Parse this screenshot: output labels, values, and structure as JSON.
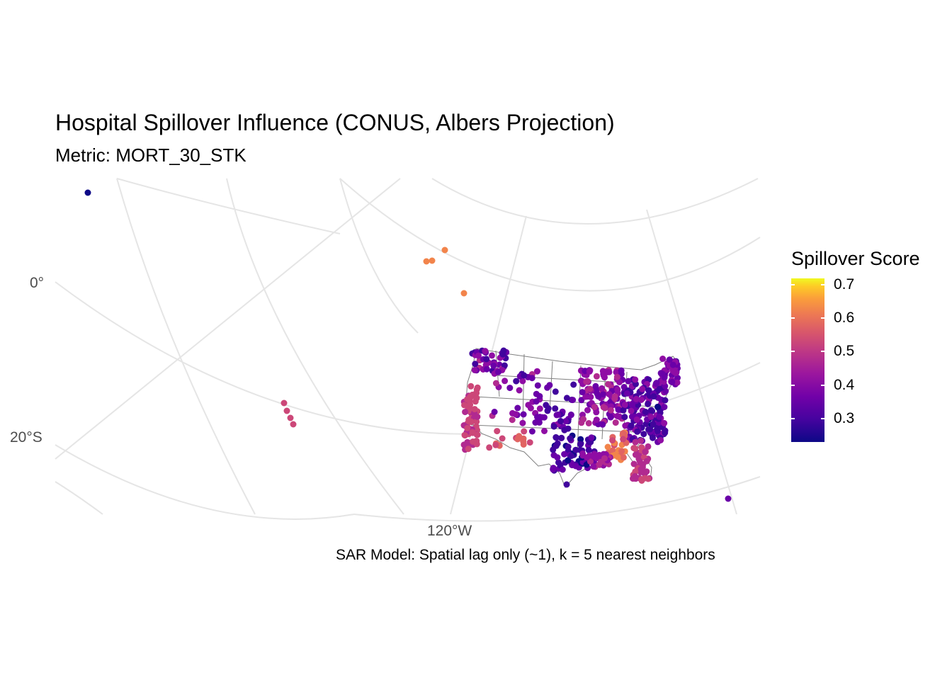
{
  "title": "Hospital Spillover Influence (CONUS, Albers Projection)",
  "subtitle": "Metric: MORT_30_STK",
  "caption": "SAR Model: Spatial lag only (~1), k = 5 nearest neighbors",
  "axes": {
    "lat_labels": [
      "0°",
      "20°S"
    ],
    "lon_labels": [
      "120°W"
    ]
  },
  "legend": {
    "title": "Spillover Score",
    "palette": "plasma",
    "ticks": [
      "0.3",
      "0.4",
      "0.5",
      "0.6",
      "0.7"
    ],
    "range": [
      0.23,
      0.72
    ]
  },
  "colors": {
    "graticule": "#e5e5e5",
    "state_borders": "#7f7f7f"
  }
}
